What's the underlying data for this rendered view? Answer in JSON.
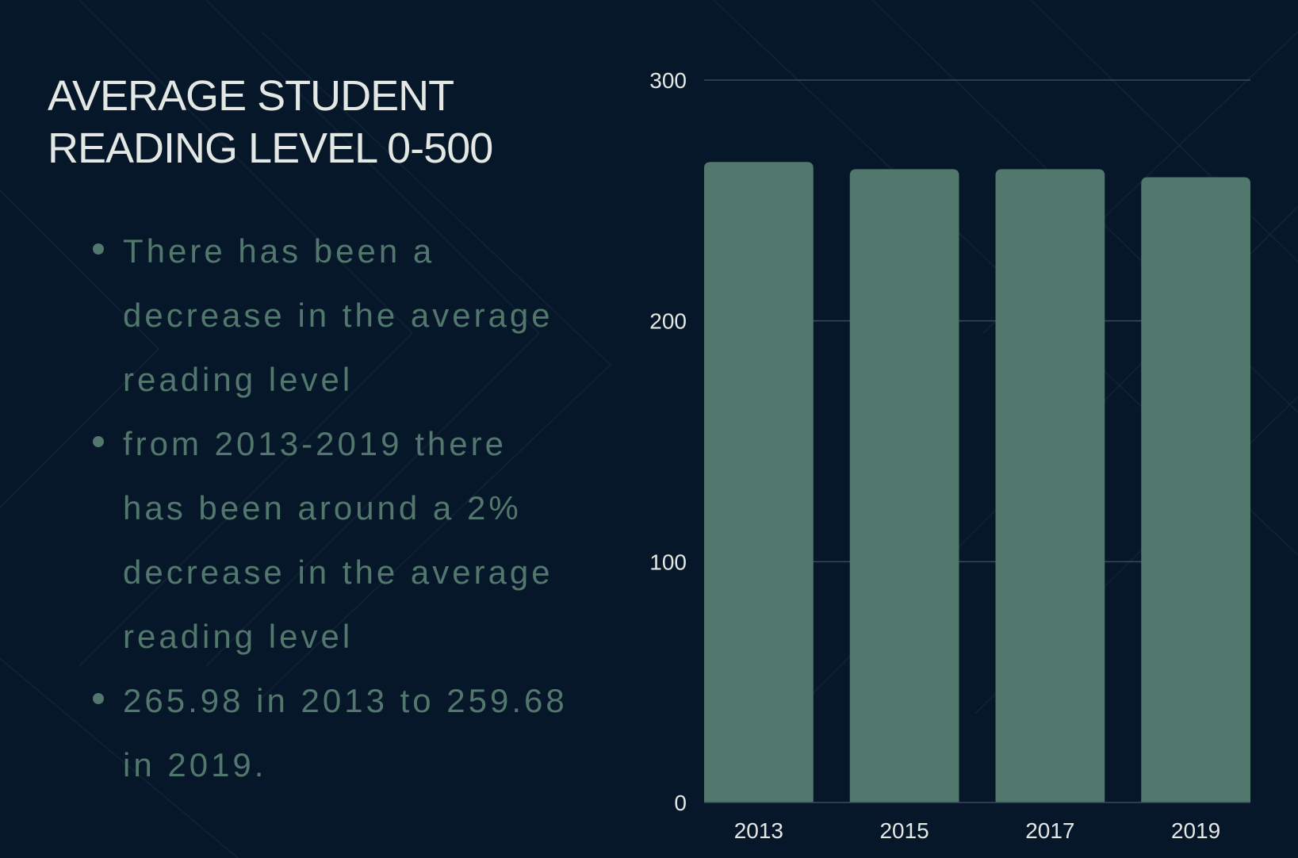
{
  "slide": {
    "title_lines": [
      "AVERAGE STUDENT",
      "READING LEVEL 0-500"
    ],
    "bullets": [
      [
        "There has been a",
        "decrease in the average",
        "reading level"
      ],
      [
        "from 2013-2019 there",
        "has been around a 2%",
        "decrease in the average",
        "reading level"
      ],
      [
        "265.98 in 2013 to 259.68",
        "in 2019."
      ]
    ]
  },
  "colors": {
    "background": "#07172a",
    "title": "#e3e8e4",
    "bullet_text": "#52776c",
    "bar": "#52776c",
    "gridline": "#3a4a58",
    "tick_label": "#e3e8e4"
  },
  "chart_data": {
    "type": "bar",
    "categories": [
      "2013",
      "2015",
      "2017",
      "2019"
    ],
    "values": [
      265.98,
      263,
      263,
      259.68
    ],
    "ylim": [
      0,
      300
    ],
    "yticks": [
      0,
      100,
      200,
      300
    ],
    "grid": true,
    "legend": "none"
  }
}
